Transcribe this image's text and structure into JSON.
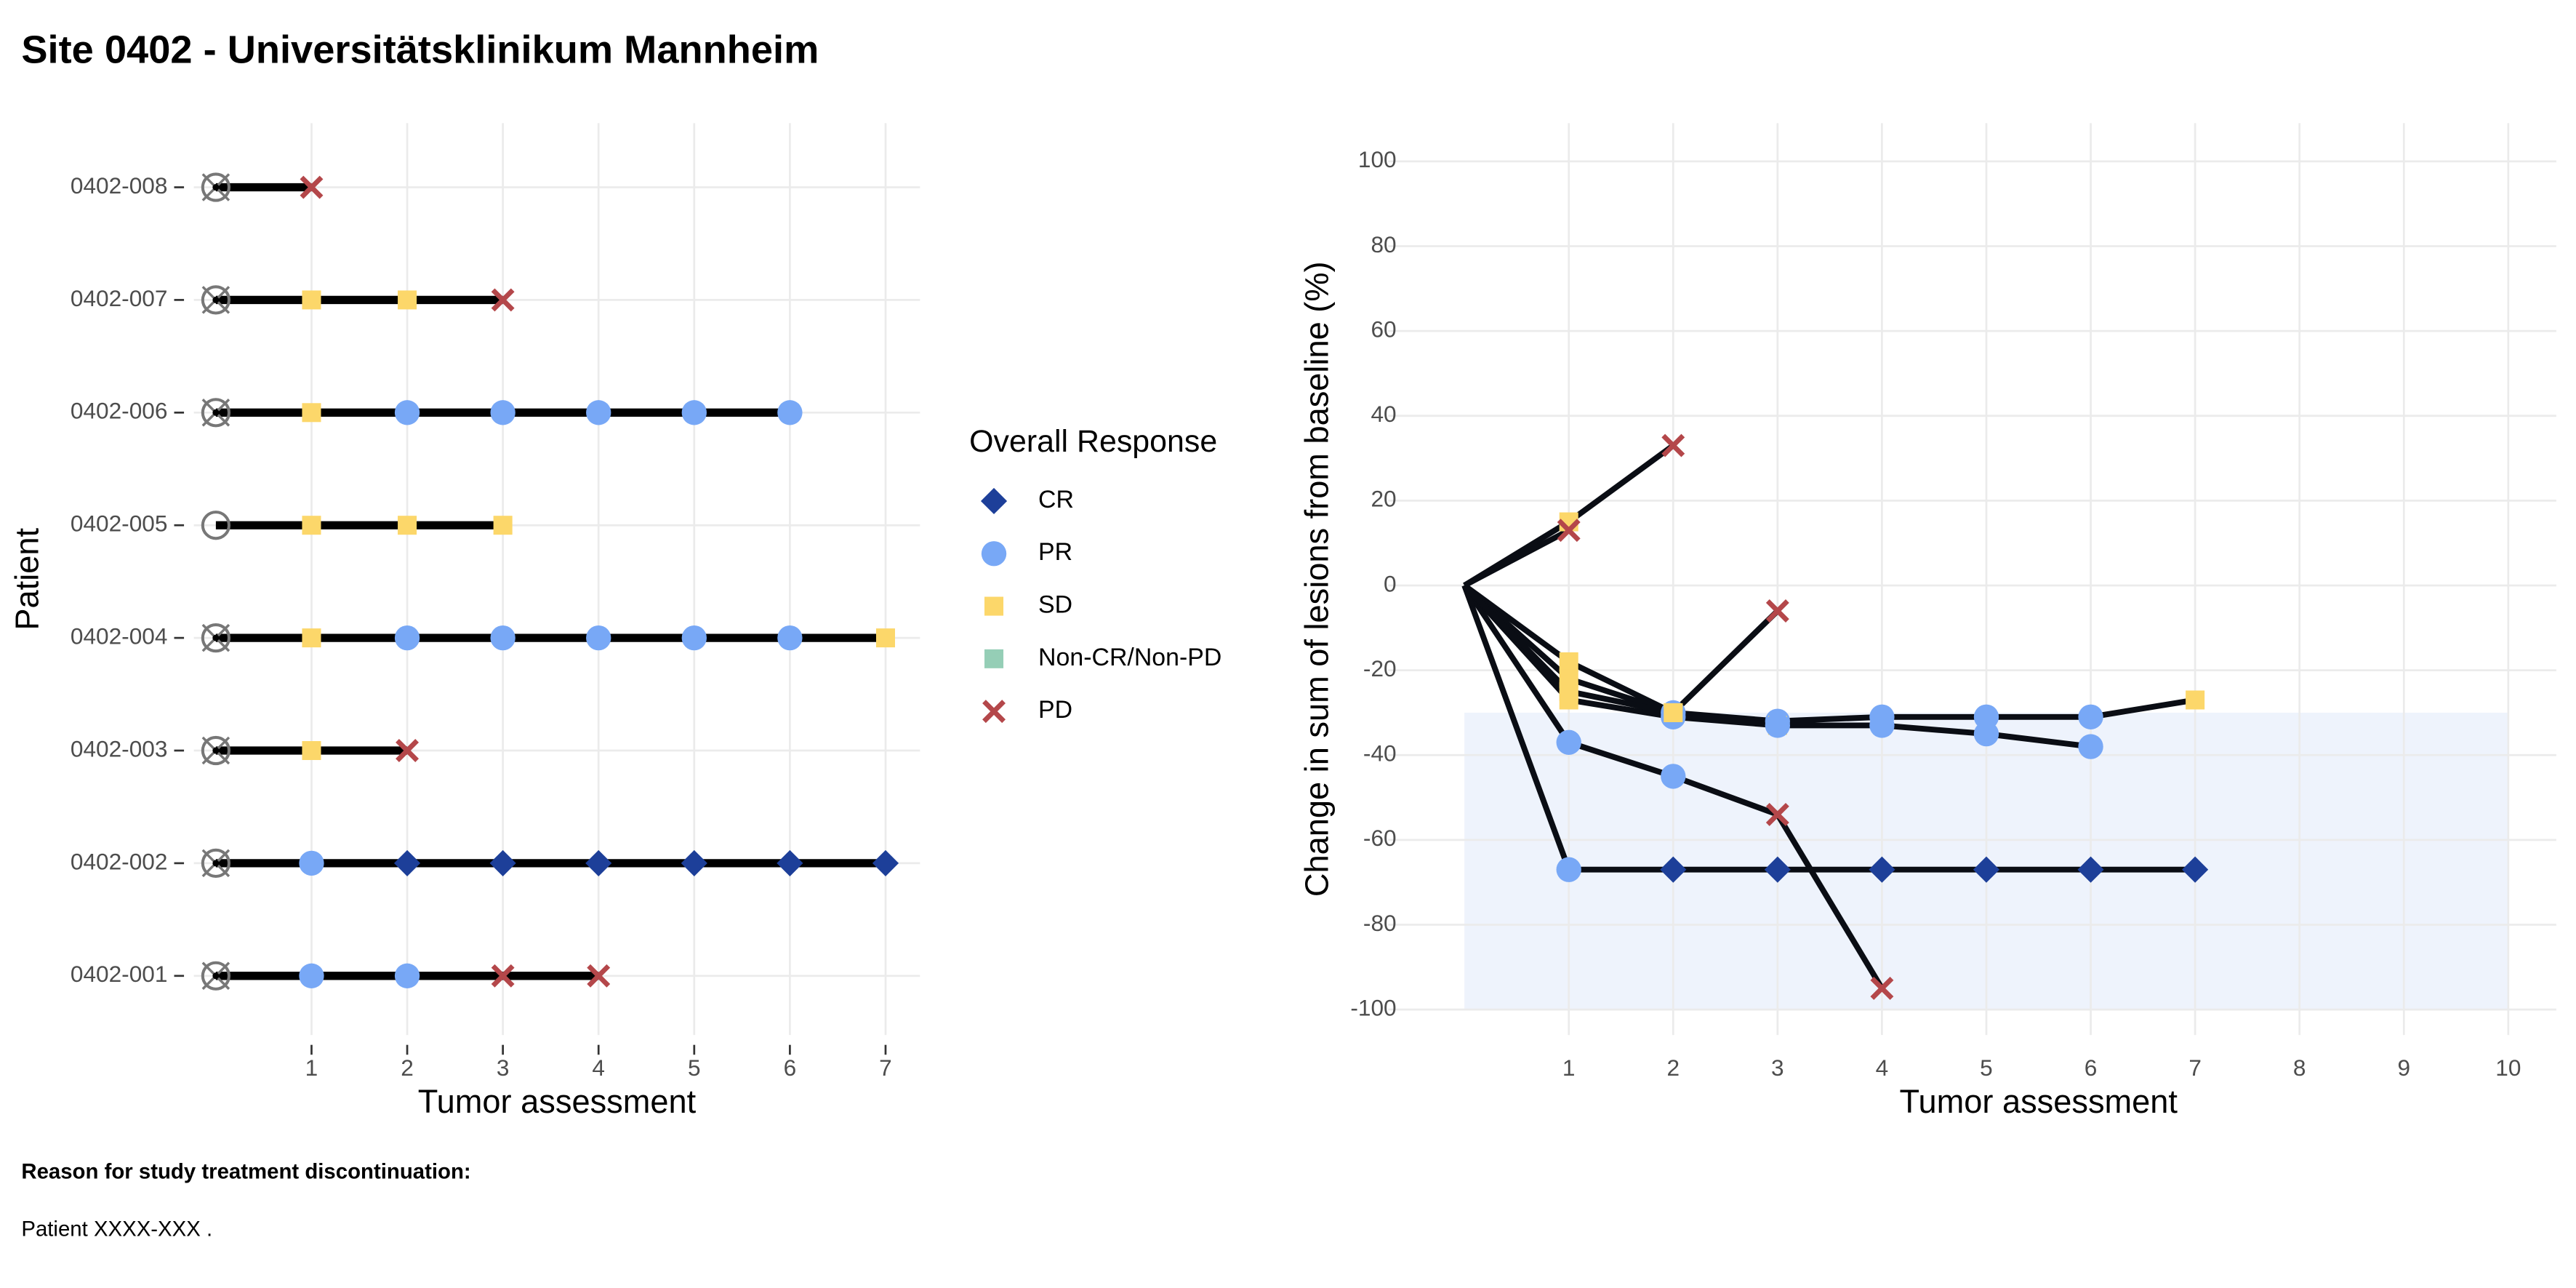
{
  "title": "Site 0402 - Universitätsklinikum Mannheim",
  "footer": {
    "heading": "Reason for study treatment discontinuation:",
    "text": "Patient XXXX-XXX ."
  },
  "legend": {
    "title": "Overall Response",
    "items": [
      {
        "label": "CR",
        "color": "#1d3f99",
        "shape": "diamond"
      },
      {
        "label": "PR",
        "color": "#78a8f6",
        "shape": "circle"
      },
      {
        "label": "SD",
        "color": "#fcd76a",
        "shape": "square"
      },
      {
        "label": "Non-CR/Non-PD",
        "color": "#95ceb6",
        "shape": "square"
      },
      {
        "label": "PD",
        "color": "#b4474a",
        "shape": "cross"
      }
    ]
  },
  "chart_data": [
    {
      "type": "swimmer",
      "x_label": "Tumor assessment",
      "y_label": "Patient",
      "grid": true,
      "line_color": "#000000",
      "categories": [
        "0402-001",
        "0402-002",
        "0402-003",
        "0402-004",
        "0402-005",
        "0402-006",
        "0402-007",
        "0402-008"
      ],
      "xlim": [
        -0.23,
        7.36
      ],
      "xticks": [
        1,
        2,
        3,
        4,
        5,
        6,
        7
      ],
      "series": [
        {
          "start_symbol": "circle-x",
          "x": [
            0,
            1,
            2,
            3,
            4
          ],
          "response": [
            null,
            "PR",
            "PR",
            "PD",
            "PD"
          ]
        },
        {
          "start_symbol": "circle-x",
          "x": [
            0,
            1,
            2,
            3,
            4,
            5,
            6,
            7
          ],
          "response": [
            null,
            "PR",
            "CR",
            "CR",
            "CR",
            "CR",
            "CR",
            "CR"
          ]
        },
        {
          "start_symbol": "circle-x",
          "x": [
            0,
            1,
            2
          ],
          "response": [
            null,
            "SD",
            "PD"
          ]
        },
        {
          "start_symbol": "circle-x",
          "x": [
            0,
            1,
            2,
            3,
            4,
            5,
            6,
            7
          ],
          "response": [
            null,
            "SD",
            "PR",
            "PR",
            "PR",
            "PR",
            "PR",
            "SD"
          ]
        },
        {
          "start_symbol": "circle",
          "x": [
            0,
            1,
            2,
            3
          ],
          "response": [
            null,
            "SD",
            "SD",
            "SD"
          ]
        },
        {
          "start_symbol": "circle-x",
          "x": [
            0,
            1,
            2,
            3,
            4,
            5,
            6
          ],
          "response": [
            null,
            "SD",
            "PR",
            "PR",
            "PR",
            "PR",
            "PR"
          ]
        },
        {
          "start_symbol": "circle-x",
          "x": [
            0,
            1,
            2,
            3
          ],
          "response": [
            null,
            "SD",
            "SD",
            "PD"
          ]
        },
        {
          "start_symbol": "circle-x",
          "x": [
            0,
            1
          ],
          "response": [
            null,
            "PD"
          ]
        }
      ]
    },
    {
      "type": "spider",
      "x_label": "Tumor assessment",
      "y_label": "Change in sum of lesions from baseline (%)",
      "grid": true,
      "line_color": "#0a0d14",
      "xlim": [
        -0.73,
        10.46
      ],
      "ylim": [
        -106,
        109
      ],
      "xticks": [
        1,
        2,
        3,
        4,
        5,
        6,
        7,
        8,
        9,
        10
      ],
      "yticks": [
        -100,
        -80,
        -60,
        -40,
        -20,
        0,
        20,
        40,
        60,
        80,
        100
      ],
      "band": {
        "x": [
          0,
          10
        ],
        "y": [
          -100,
          -30
        ],
        "color": "#eef3fc"
      },
      "series": [
        {
          "x": [
            0,
            1,
            2,
            3,
            4
          ],
          "values": [
            0,
            -37,
            -45,
            -54,
            -95
          ],
          "response": [
            null,
            "PR",
            "PR",
            "PD",
            "PD"
          ]
        },
        {
          "x": [
            0,
            1,
            2,
            3,
            4,
            5,
            6,
            7
          ],
          "values": [
            0,
            -67,
            -67,
            -67,
            -67,
            -67,
            -67,
            -67
          ],
          "response": [
            null,
            "PR",
            "CR",
            "CR",
            "CR",
            "CR",
            "CR",
            "CR"
          ]
        },
        {
          "x": [
            0,
            1,
            2
          ],
          "values": [
            0,
            15,
            33
          ],
          "response": [
            null,
            "SD",
            "PD"
          ]
        },
        {
          "x": [
            0,
            1,
            2,
            3,
            4,
            5,
            6,
            7
          ],
          "values": [
            0,
            -18,
            -30,
            -32,
            -31,
            -31,
            -31,
            -27
          ],
          "response": [
            null,
            "SD",
            "PR",
            "PR",
            "PR",
            "PR",
            "PR",
            "SD"
          ]
        },
        {
          "x": [
            0,
            1,
            2,
            3
          ],
          "values": [
            0,
            -22,
            -30,
            -33
          ],
          "response": [
            null,
            "SD",
            "SD",
            "SD"
          ]
        },
        {
          "x": [
            0,
            1,
            2,
            3,
            4,
            5,
            6
          ],
          "values": [
            0,
            -27,
            -31,
            -33,
            -33,
            -35,
            -38
          ],
          "response": [
            null,
            "SD",
            "PR",
            "PR",
            "PR",
            "PR",
            "PR"
          ]
        },
        {
          "x": [
            0,
            1,
            2,
            3
          ],
          "values": [
            0,
            -25,
            -30,
            -6
          ],
          "response": [
            null,
            "SD",
            "SD",
            "PD"
          ]
        },
        {
          "x": [
            0,
            1
          ],
          "values": [
            0,
            13
          ],
          "response": [
            null,
            "PD"
          ]
        }
      ]
    }
  ]
}
